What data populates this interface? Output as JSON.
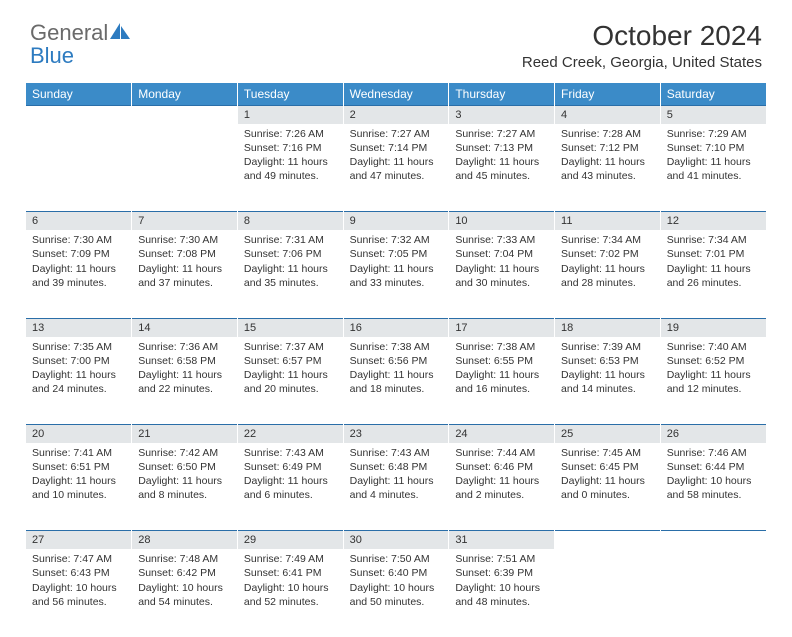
{
  "logo": {
    "word1": "General",
    "word2": "Blue"
  },
  "title": "October 2024",
  "location": "Reed Creek, Georgia, United States",
  "colors": {
    "header_bg": "#3b8bc8",
    "header_text": "#ffffff",
    "daynum_bg": "#e3e6e8",
    "rule": "#2a6ea8",
    "logo_gray": "#6a6a6a",
    "logo_blue": "#2d7bc0"
  },
  "weekdays": [
    "Sunday",
    "Monday",
    "Tuesday",
    "Wednesday",
    "Thursday",
    "Friday",
    "Saturday"
  ],
  "weeks": [
    [
      null,
      null,
      {
        "n": "1",
        "sunrise": "7:26 AM",
        "sunset": "7:16 PM",
        "day_h": 11,
        "day_m": 49
      },
      {
        "n": "2",
        "sunrise": "7:27 AM",
        "sunset": "7:14 PM",
        "day_h": 11,
        "day_m": 47
      },
      {
        "n": "3",
        "sunrise": "7:27 AM",
        "sunset": "7:13 PM",
        "day_h": 11,
        "day_m": 45
      },
      {
        "n": "4",
        "sunrise": "7:28 AM",
        "sunset": "7:12 PM",
        "day_h": 11,
        "day_m": 43
      },
      {
        "n": "5",
        "sunrise": "7:29 AM",
        "sunset": "7:10 PM",
        "day_h": 11,
        "day_m": 41
      }
    ],
    [
      {
        "n": "6",
        "sunrise": "7:30 AM",
        "sunset": "7:09 PM",
        "day_h": 11,
        "day_m": 39
      },
      {
        "n": "7",
        "sunrise": "7:30 AM",
        "sunset": "7:08 PM",
        "day_h": 11,
        "day_m": 37
      },
      {
        "n": "8",
        "sunrise": "7:31 AM",
        "sunset": "7:06 PM",
        "day_h": 11,
        "day_m": 35
      },
      {
        "n": "9",
        "sunrise": "7:32 AM",
        "sunset": "7:05 PM",
        "day_h": 11,
        "day_m": 33
      },
      {
        "n": "10",
        "sunrise": "7:33 AM",
        "sunset": "7:04 PM",
        "day_h": 11,
        "day_m": 30
      },
      {
        "n": "11",
        "sunrise": "7:34 AM",
        "sunset": "7:02 PM",
        "day_h": 11,
        "day_m": 28
      },
      {
        "n": "12",
        "sunrise": "7:34 AM",
        "sunset": "7:01 PM",
        "day_h": 11,
        "day_m": 26
      }
    ],
    [
      {
        "n": "13",
        "sunrise": "7:35 AM",
        "sunset": "7:00 PM",
        "day_h": 11,
        "day_m": 24
      },
      {
        "n": "14",
        "sunrise": "7:36 AM",
        "sunset": "6:58 PM",
        "day_h": 11,
        "day_m": 22
      },
      {
        "n": "15",
        "sunrise": "7:37 AM",
        "sunset": "6:57 PM",
        "day_h": 11,
        "day_m": 20
      },
      {
        "n": "16",
        "sunrise": "7:38 AM",
        "sunset": "6:56 PM",
        "day_h": 11,
        "day_m": 18
      },
      {
        "n": "17",
        "sunrise": "7:38 AM",
        "sunset": "6:55 PM",
        "day_h": 11,
        "day_m": 16
      },
      {
        "n": "18",
        "sunrise": "7:39 AM",
        "sunset": "6:53 PM",
        "day_h": 11,
        "day_m": 14
      },
      {
        "n": "19",
        "sunrise": "7:40 AM",
        "sunset": "6:52 PM",
        "day_h": 11,
        "day_m": 12
      }
    ],
    [
      {
        "n": "20",
        "sunrise": "7:41 AM",
        "sunset": "6:51 PM",
        "day_h": 11,
        "day_m": 10
      },
      {
        "n": "21",
        "sunrise": "7:42 AM",
        "sunset": "6:50 PM",
        "day_h": 11,
        "day_m": 8
      },
      {
        "n": "22",
        "sunrise": "7:43 AM",
        "sunset": "6:49 PM",
        "day_h": 11,
        "day_m": 6
      },
      {
        "n": "23",
        "sunrise": "7:43 AM",
        "sunset": "6:48 PM",
        "day_h": 11,
        "day_m": 4
      },
      {
        "n": "24",
        "sunrise": "7:44 AM",
        "sunset": "6:46 PM",
        "day_h": 11,
        "day_m": 2
      },
      {
        "n": "25",
        "sunrise": "7:45 AM",
        "sunset": "6:45 PM",
        "day_h": 11,
        "day_m": 0
      },
      {
        "n": "26",
        "sunrise": "7:46 AM",
        "sunset": "6:44 PM",
        "day_h": 10,
        "day_m": 58
      }
    ],
    [
      {
        "n": "27",
        "sunrise": "7:47 AM",
        "sunset": "6:43 PM",
        "day_h": 10,
        "day_m": 56
      },
      {
        "n": "28",
        "sunrise": "7:48 AM",
        "sunset": "6:42 PM",
        "day_h": 10,
        "day_m": 54
      },
      {
        "n": "29",
        "sunrise": "7:49 AM",
        "sunset": "6:41 PM",
        "day_h": 10,
        "day_m": 52
      },
      {
        "n": "30",
        "sunrise": "7:50 AM",
        "sunset": "6:40 PM",
        "day_h": 10,
        "day_m": 50
      },
      {
        "n": "31",
        "sunrise": "7:51 AM",
        "sunset": "6:39 PM",
        "day_h": 10,
        "day_m": 48
      },
      null,
      null
    ]
  ],
  "labels": {
    "sunrise": "Sunrise:",
    "sunset": "Sunset:",
    "daylight": "Daylight:",
    "hours": "hours",
    "and": "and",
    "minutes": "minutes."
  }
}
